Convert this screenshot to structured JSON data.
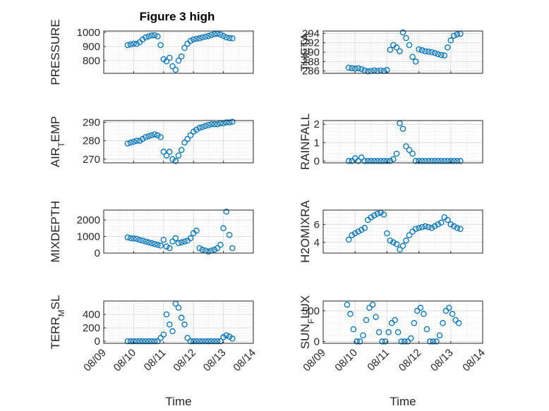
{
  "figure": {
    "title": "Figure 3 high",
    "xlabel": "Time",
    "x_tick_labels": [
      "08/09",
      "08/10",
      "08/11",
      "08/12",
      "08/13",
      "08/14"
    ],
    "marker_color": "#0072BD"
  },
  "chart_data": [
    {
      "type": "scatter",
      "id": "pressure",
      "title": "Figure 3 high",
      "ylabel": "PRESSURE",
      "ylim": [
        710,
        1010
      ],
      "yticks": [
        800,
        900,
        1000
      ],
      "xlim": [
        0,
        5
      ],
      "grid": true,
      "x": [
        0.8,
        0.9,
        1.0,
        1.1,
        1.2,
        1.3,
        1.4,
        1.5,
        1.6,
        1.7,
        1.8,
        1.9,
        2.0,
        2.1,
        2.2,
        2.3,
        2.4,
        2.5,
        2.6,
        2.7,
        2.8,
        2.9,
        3.0,
        3.1,
        3.2,
        3.3,
        3.4,
        3.5,
        3.6,
        3.7,
        3.8,
        3.9,
        4.0,
        4.1,
        4.2,
        4.3
      ],
      "y": [
        910,
        915,
        920,
        918,
        930,
        950,
        965,
        972,
        978,
        980,
        972,
        910,
        810,
        795,
        820,
        760,
        735,
        800,
        830,
        890,
        920,
        940,
        950,
        955,
        958,
        965,
        970,
        975,
        982,
        988,
        990,
        985,
        975,
        965,
        960,
        958
      ]
    },
    {
      "type": "scatter",
      "id": "theta",
      "ylabel": "THETA",
      "ylim": [
        285.5,
        294.5
      ],
      "yticks": [
        286,
        288,
        290,
        292,
        294
      ],
      "xlim": [
        0,
        5
      ],
      "grid": true,
      "x": [
        0.8,
        0.9,
        1.0,
        1.1,
        1.2,
        1.3,
        1.4,
        1.5,
        1.6,
        1.7,
        1.8,
        1.9,
        2.0,
        2.1,
        2.2,
        2.3,
        2.4,
        2.5,
        2.6,
        2.7,
        2.8,
        2.9,
        3.0,
        3.1,
        3.2,
        3.3,
        3.4,
        3.5,
        3.6,
        3.7,
        3.8,
        3.9,
        4.0,
        4.1,
        4.2,
        4.3
      ],
      "y": [
        286.7,
        286.6,
        286.5,
        286.6,
        286.4,
        286.1,
        285.9,
        286.0,
        286.1,
        286.0,
        286.1,
        286.0,
        286.2,
        290.5,
        291.5,
        291.0,
        290.2,
        294.2,
        293.0,
        291.5,
        289.0,
        288.0,
        290.6,
        290.4,
        290.2,
        290.1,
        290.0,
        289.8,
        289.6,
        289.4,
        289.3,
        291.0,
        292.5,
        293.5,
        293.8,
        293.9
      ]
    },
    {
      "type": "scatter",
      "id": "air-temp",
      "ylabel": "AIR_TEMP",
      "ylim": [
        268,
        291
      ],
      "yticks": [
        270,
        280,
        290
      ],
      "xlim": [
        0,
        5
      ],
      "grid": true,
      "x": [
        0.8,
        0.9,
        1.0,
        1.1,
        1.2,
        1.3,
        1.4,
        1.5,
        1.6,
        1.7,
        1.8,
        1.9,
        2.0,
        2.1,
        2.2,
        2.3,
        2.4,
        2.5,
        2.6,
        2.7,
        2.8,
        2.9,
        3.0,
        3.1,
        3.2,
        3.3,
        3.4,
        3.5,
        3.6,
        3.7,
        3.8,
        3.9,
        4.0,
        4.1,
        4.2,
        4.3
      ],
      "y": [
        278.5,
        279,
        279.5,
        280,
        280,
        281,
        282,
        282.5,
        283,
        283.5,
        283,
        282,
        274,
        272,
        274,
        270,
        269,
        272,
        275,
        279,
        281,
        283,
        285,
        286,
        287,
        287.5,
        288,
        288.5,
        289,
        289,
        289,
        289.5,
        289.5,
        290,
        290,
        290.3
      ]
    },
    {
      "type": "scatter",
      "id": "rainfall",
      "ylabel": "RAINFALL",
      "ylim": [
        -0.1,
        2.2
      ],
      "yticks": [
        0,
        1,
        2
      ],
      "xlim": [
        0,
        5
      ],
      "grid": true,
      "x": [
        0.8,
        0.9,
        1.0,
        1.1,
        1.2,
        1.3,
        1.4,
        1.5,
        1.6,
        1.7,
        1.8,
        1.9,
        2.0,
        2.1,
        2.2,
        2.3,
        2.4,
        2.5,
        2.6,
        2.7,
        2.8,
        2.9,
        3.0,
        3.1,
        3.2,
        3.3,
        3.4,
        3.5,
        3.6,
        3.7,
        3.8,
        3.9,
        4.0,
        4.1,
        4.2,
        4.3
      ],
      "y": [
        0,
        0,
        0.15,
        0,
        0.2,
        0,
        0,
        0,
        0,
        0,
        0,
        0,
        0,
        0,
        0.1,
        0.4,
        2.05,
        1.75,
        0.8,
        0.6,
        0.4,
        0,
        0,
        0,
        0,
        0,
        0,
        0,
        0,
        0,
        0,
        0,
        0,
        0,
        0,
        0
      ]
    },
    {
      "type": "scatter",
      "id": "mixdepth",
      "ylabel": "MIXDEPTH",
      "ylim": [
        0,
        2600
      ],
      "yticks": [
        0,
        1000,
        2000
      ],
      "xlim": [
        0,
        5
      ],
      "grid": true,
      "x": [
        0.8,
        0.9,
        1.0,
        1.1,
        1.2,
        1.3,
        1.4,
        1.5,
        1.6,
        1.7,
        1.8,
        1.9,
        2.0,
        2.1,
        2.2,
        2.3,
        2.4,
        2.5,
        2.6,
        2.7,
        2.8,
        2.9,
        3.0,
        3.1,
        3.2,
        3.3,
        3.4,
        3.5,
        3.6,
        3.7,
        3.8,
        3.9,
        4.0,
        4.1,
        4.2,
        4.3
      ],
      "y": [
        950,
        900,
        880,
        860,
        800,
        750,
        700,
        650,
        600,
        550,
        500,
        450,
        800,
        400,
        300,
        700,
        900,
        600,
        650,
        700,
        750,
        900,
        1200,
        1350,
        300,
        200,
        150,
        100,
        150,
        200,
        300,
        500,
        1500,
        2500,
        1100,
        300
      ]
    },
    {
      "type": "scatter",
      "id": "h2omixra",
      "ylabel": "H2OMIXRA",
      "ylim": [
        2.8,
        7.6
      ],
      "yticks": [
        4,
        6
      ],
      "xlim": [
        0,
        5
      ],
      "grid": true,
      "x": [
        0.8,
        0.9,
        1.0,
        1.1,
        1.2,
        1.3,
        1.4,
        1.5,
        1.6,
        1.7,
        1.8,
        1.9,
        2.0,
        2.1,
        2.2,
        2.3,
        2.4,
        2.5,
        2.6,
        2.7,
        2.8,
        2.9,
        3.0,
        3.1,
        3.2,
        3.3,
        3.4,
        3.5,
        3.6,
        3.7,
        3.8,
        3.9,
        4.0,
        4.1,
        4.2,
        4.3
      ],
      "y": [
        4.3,
        4.8,
        5.0,
        5.2,
        5.4,
        5.6,
        6.5,
        6.8,
        7.0,
        7.2,
        7.3,
        7.1,
        5.0,
        4.2,
        4.0,
        3.8,
        3.2,
        3.6,
        4.2,
        4.8,
        5.2,
        5.5,
        5.6,
        5.7,
        5.8,
        5.7,
        5.6,
        5.8,
        6.0,
        6.2,
        6.8,
        6.5,
        6.0,
        5.8,
        5.6,
        5.5
      ]
    },
    {
      "type": "scatter",
      "id": "terr-msl",
      "ylabel": "TERR_MSL",
      "ylim": [
        -30,
        600
      ],
      "yticks": [
        0,
        200,
        400
      ],
      "xlim": [
        0,
        5
      ],
      "grid": true,
      "x": [
        0.8,
        0.9,
        1.0,
        1.1,
        1.2,
        1.3,
        1.4,
        1.5,
        1.6,
        1.7,
        1.8,
        1.9,
        2.0,
        2.1,
        2.2,
        2.3,
        2.4,
        2.5,
        2.6,
        2.7,
        2.8,
        2.9,
        3.0,
        3.1,
        3.2,
        3.3,
        3.4,
        3.5,
        3.6,
        3.7,
        3.8,
        3.9,
        4.0,
        4.1,
        4.2,
        4.3
      ],
      "y": [
        0,
        0,
        0,
        0,
        0,
        0,
        0,
        0,
        0,
        0,
        0,
        50,
        100,
        400,
        250,
        150,
        560,
        500,
        350,
        250,
        50,
        0,
        0,
        0,
        0,
        0,
        0,
        0,
        0,
        0,
        0,
        0,
        60,
        90,
        70,
        40
      ]
    },
    {
      "type": "scatter",
      "id": "sun-flux",
      "ylabel": "SUN_FLUX",
      "ylim": [
        -30,
        660
      ],
      "yticks": [
        0,
        500
      ],
      "xlim": [
        0,
        5
      ],
      "grid": true,
      "x": [
        0.75,
        0.85,
        0.95,
        1.05,
        1.15,
        1.25,
        1.35,
        1.45,
        1.55,
        1.65,
        1.75,
        1.85,
        1.95,
        2.05,
        2.15,
        2.25,
        2.35,
        2.45,
        2.55,
        2.65,
        2.75,
        2.85,
        2.95,
        3.05,
        3.15,
        3.25,
        3.35,
        3.45,
        3.55,
        3.65,
        3.75,
        3.85,
        3.95,
        4.05,
        4.15,
        4.25
      ],
      "y": [
        600,
        450,
        200,
        0,
        0,
        100,
        350,
        550,
        600,
        400,
        150,
        0,
        0,
        150,
        300,
        350,
        150,
        0,
        0,
        0,
        50,
        300,
        500,
        550,
        450,
        200,
        0,
        0,
        0,
        100,
        300,
        500,
        550,
        450,
        350,
        300
      ]
    }
  ]
}
